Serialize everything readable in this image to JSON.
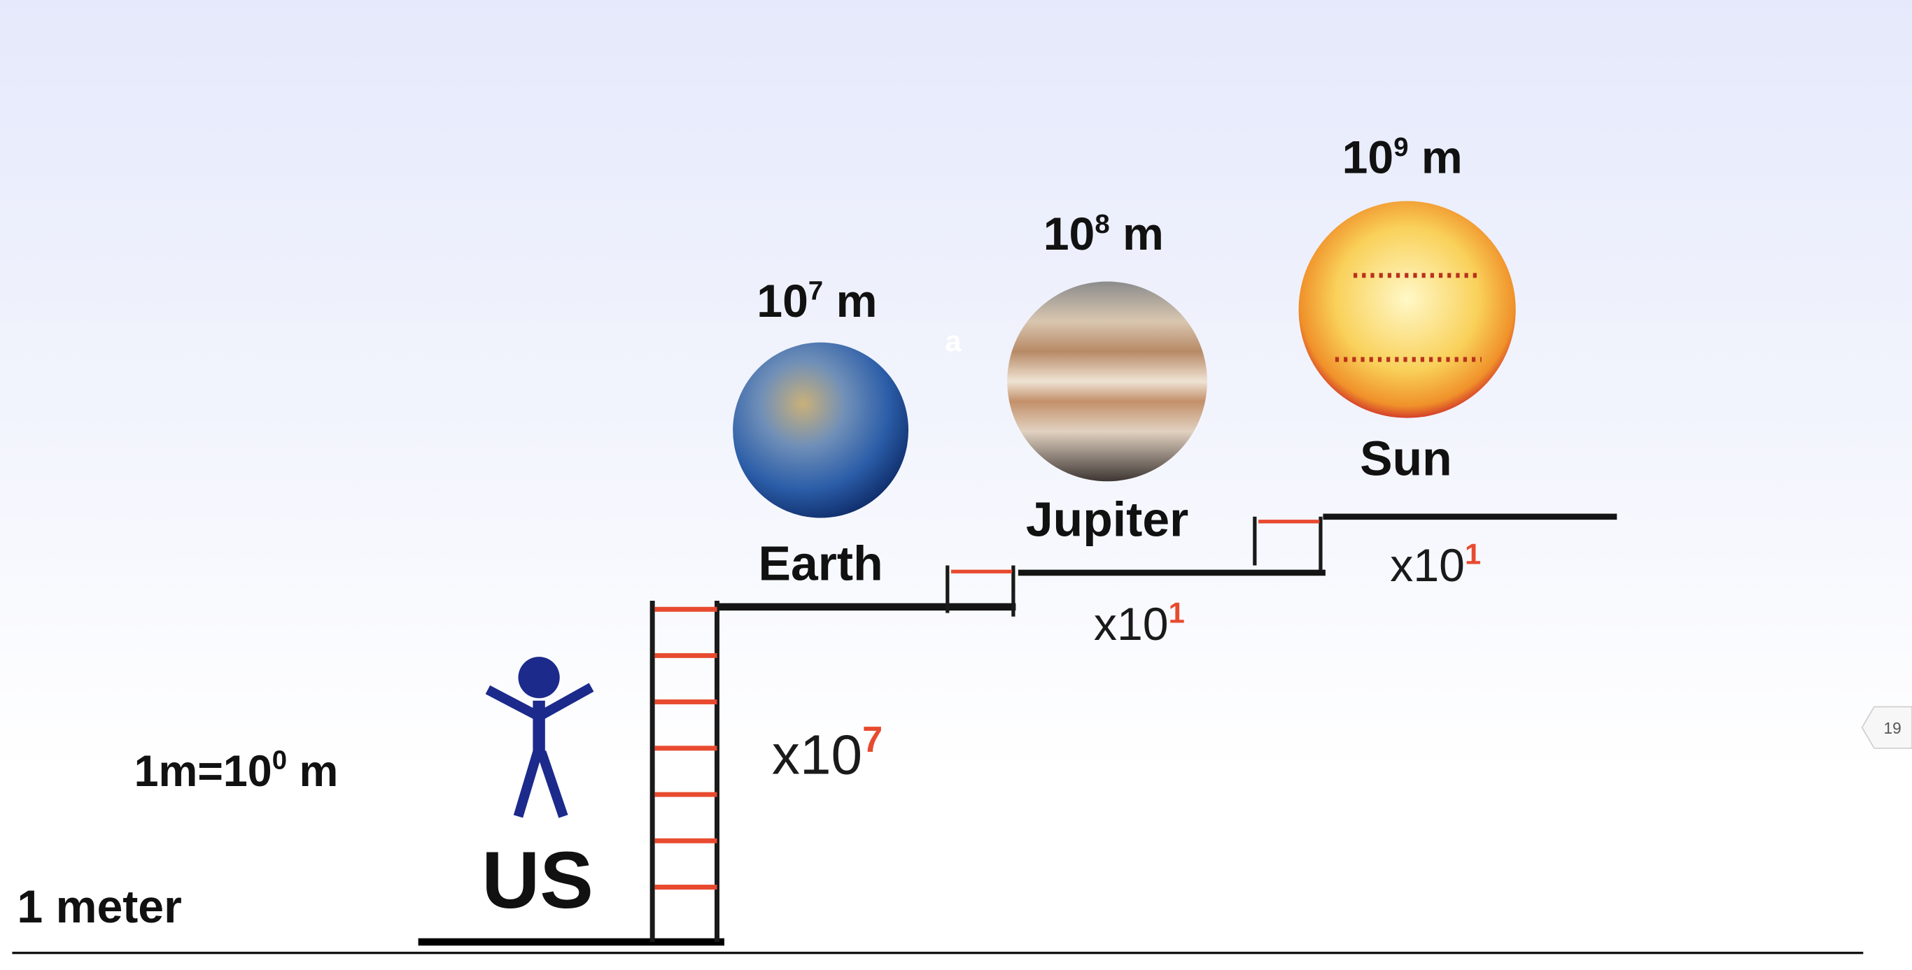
{
  "slide": {
    "page_number": "19",
    "stray_text": "a",
    "colors": {
      "accent": "#e84a2f",
      "line": "#141414",
      "person": "#1c2a8c"
    },
    "baseline_label": "1 meter",
    "us": {
      "label": "US",
      "size_base": "1m=10",
      "size_exp": "0",
      "size_unit": " m"
    },
    "steps": [
      {
        "factor_base": "x10",
        "factor_exp": "7"
      },
      {
        "factor_base": "x10",
        "factor_exp": "1"
      },
      {
        "factor_base": "x10",
        "factor_exp": "1"
      }
    ],
    "objects": [
      {
        "name": "Earth",
        "size_base": "10",
        "size_exp": "7",
        "size_unit": " m",
        "icon": "earth-globe"
      },
      {
        "name": "Jupiter",
        "size_base": "10",
        "size_exp": "8",
        "size_unit": " m",
        "icon": "jupiter-planet"
      },
      {
        "name": "Sun",
        "size_base": "10",
        "size_exp": "9",
        "size_unit": " m",
        "icon": "sun-star"
      }
    ]
  }
}
